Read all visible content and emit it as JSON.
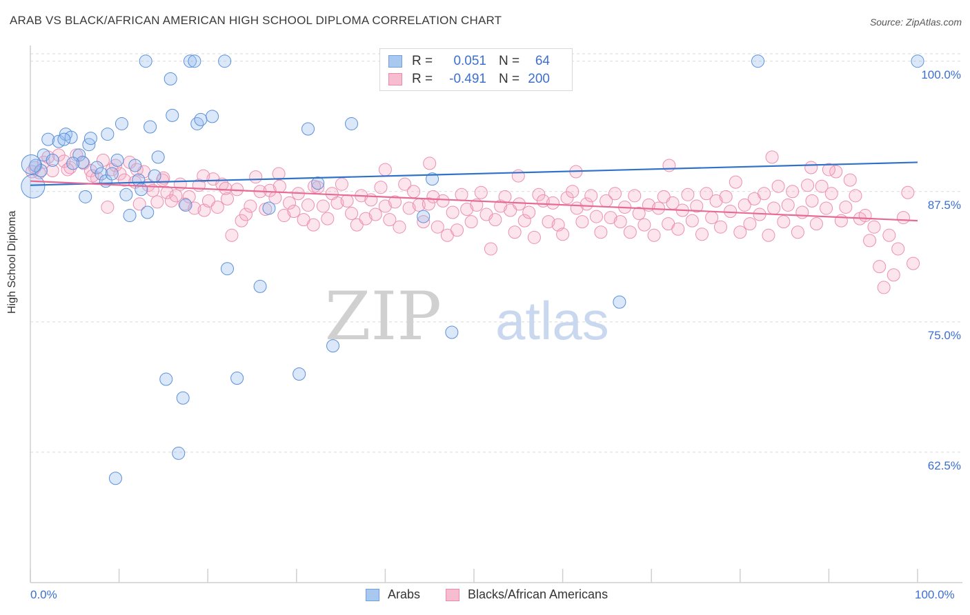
{
  "title": "ARAB VS BLACK/AFRICAN AMERICAN HIGH SCHOOL DIPLOMA CORRELATION CHART",
  "source": "Source: ZipAtlas.com",
  "watermark": {
    "zip": "ZIP",
    "atlas": "atlas"
  },
  "legend": {
    "rows": [
      {
        "r_label": "R =",
        "r_value": "0.051",
        "n_label": "N =",
        "n_value": "64",
        "color": "#a8c8f0",
        "border": "#6f9fe0"
      },
      {
        "r_label": "R =",
        "r_value": "-0.491",
        "n_label": "N =",
        "n_value": "200",
        "color": "#f8bcd0",
        "border": "#e88aa8"
      }
    ]
  },
  "bottom_legend": [
    {
      "label": "Arabs",
      "color": "#a8c8f0",
      "border": "#6f9fe0"
    },
    {
      "label": "Blacks/African Americans",
      "color": "#f8bcd0",
      "border": "#e88aa8"
    }
  ],
  "colors": {
    "arab_fill": "rgba(150,190,240,0.35)",
    "arab_stroke": "#5b8fd8",
    "black_fill": "rgba(245,170,195,0.3)",
    "black_stroke": "#ec8fb0",
    "arab_line": "#2f72c8",
    "black_line": "#e66a95",
    "grid": "#d9d9d9",
    "tick_label": "#3b6fd0"
  },
  "chart_data": {
    "type": "scatter",
    "title": "ARAB VS BLACK/AFRICAN AMERICAN HIGH SCHOOL DIPLOMA CORRELATION CHART",
    "xlabel": "",
    "ylabel": "High School Diploma",
    "xlim": [
      0,
      100
    ],
    "ylim": [
      50,
      101.5
    ],
    "x_tick_labels": [
      "0.0%",
      "100.0%"
    ],
    "y_ticks": [
      62.5,
      75.0,
      87.5,
      100.0
    ],
    "y_tick_labels": [
      "62.5%",
      "75.0%",
      "87.5%",
      "100.0%"
    ],
    "grid": true,
    "series": [
      {
        "name": "Arabs",
        "trend": {
          "x": [
            0,
            100
          ],
          "y": [
            88.1,
            90.3
          ]
        },
        "points": [
          [
            0.3,
            88.0
          ],
          [
            0.6,
            90.0
          ],
          [
            1.2,
            89.5
          ],
          [
            1.5,
            91.0
          ],
          [
            2.0,
            92.5
          ],
          [
            2.5,
            90.5
          ],
          [
            3.2,
            92.3
          ],
          [
            4.0,
            93.0
          ],
          [
            4.6,
            92.7
          ],
          [
            5.5,
            91.0
          ],
          [
            5.9,
            90.3
          ],
          [
            6.2,
            87.0
          ],
          [
            6.6,
            92.0
          ],
          [
            6.8,
            92.6
          ],
          [
            7.5,
            89.8
          ],
          [
            8.0,
            89.2
          ],
          [
            8.5,
            88.5
          ],
          [
            8.7,
            93.0
          ],
          [
            9.2,
            89.2
          ],
          [
            9.6,
            60.0
          ],
          [
            9.8,
            90.5
          ],
          [
            10.3,
            94.0
          ],
          [
            10.8,
            87.2
          ],
          [
            11.2,
            85.2
          ],
          [
            11.8,
            90.0
          ],
          [
            12.2,
            88.6
          ],
          [
            12.5,
            87.7
          ],
          [
            13.0,
            100.0
          ],
          [
            13.2,
            85.5
          ],
          [
            13.5,
            93.7
          ],
          [
            14.4,
            90.8
          ],
          [
            15.3,
            69.5
          ],
          [
            15.8,
            98.3
          ],
          [
            16.0,
            94.8
          ],
          [
            16.7,
            62.4
          ],
          [
            17.2,
            67.7
          ],
          [
            17.5,
            86.2
          ],
          [
            18.0,
            100.0
          ],
          [
            18.5,
            100.0
          ],
          [
            18.8,
            94.0
          ],
          [
            19.2,
            94.4
          ],
          [
            20.5,
            94.7
          ],
          [
            21.9,
            100.0
          ],
          [
            22.2,
            80.1
          ],
          [
            23.3,
            69.6
          ],
          [
            25.9,
            78.4
          ],
          [
            26.9,
            85.9
          ],
          [
            30.3,
            70.0
          ],
          [
            31.3,
            93.5
          ],
          [
            34.1,
            72.7
          ],
          [
            32.4,
            88.3
          ],
          [
            36.2,
            94.0
          ],
          [
            44.3,
            85.1
          ],
          [
            45.3,
            88.7
          ],
          [
            47.5,
            74.0
          ],
          [
            48.2,
            100.0
          ],
          [
            60.2,
            100.0
          ],
          [
            66.4,
            76.9
          ],
          [
            82.0,
            100.0
          ],
          [
            100.0,
            100.0
          ],
          [
            0.1,
            90.1
          ],
          [
            4.8,
            90.2
          ],
          [
            3.8,
            92.5
          ],
          [
            14.0,
            89.0
          ]
        ]
      },
      {
        "name": "Blacks/African Americans",
        "trend": {
          "x": [
            0,
            100
          ],
          "y": [
            88.5,
            84.7
          ]
        },
        "points": [
          [
            0.5,
            89.8
          ],
          [
            1.5,
            90.3
          ],
          [
            2.5,
            89.5
          ],
          [
            3.2,
            91.0
          ],
          [
            3.8,
            90.4
          ],
          [
            4.5,
            89.8
          ],
          [
            5.2,
            91.0
          ],
          [
            6.0,
            90.2
          ],
          [
            6.8,
            89.5
          ],
          [
            7.5,
            88.8
          ],
          [
            8.2,
            90.5
          ],
          [
            8.7,
            86.0
          ],
          [
            9.2,
            89.6
          ],
          [
            9.6,
            90.0
          ],
          [
            10.1,
            89.2
          ],
          [
            10.6,
            88.6
          ],
          [
            11.2,
            90.3
          ],
          [
            11.8,
            88.4
          ],
          [
            12.3,
            86.3
          ],
          [
            12.8,
            89.4
          ],
          [
            13.3,
            88.1
          ],
          [
            13.8,
            87.6
          ],
          [
            14.3,
            86.5
          ],
          [
            14.9,
            88.6
          ],
          [
            15.4,
            87.4
          ],
          [
            15.9,
            86.6
          ],
          [
            16.4,
            87.1
          ],
          [
            16.9,
            88.2
          ],
          [
            17.4,
            86.3
          ],
          [
            17.9,
            87.0
          ],
          [
            18.5,
            85.9
          ],
          [
            19.0,
            88.1
          ],
          [
            19.6,
            85.7
          ],
          [
            20.1,
            86.6
          ],
          [
            20.6,
            88.7
          ],
          [
            21.1,
            86.0
          ],
          [
            21.6,
            88.2
          ],
          [
            22.2,
            86.8
          ],
          [
            22.7,
            83.3
          ],
          [
            23.3,
            87.7
          ],
          [
            23.8,
            84.7
          ],
          [
            24.3,
            85.3
          ],
          [
            24.8,
            86.1
          ],
          [
            25.4,
            88.9
          ],
          [
            25.9,
            87.5
          ],
          [
            26.5,
            85.8
          ],
          [
            27.0,
            87.6
          ],
          [
            27.6,
            86.9
          ],
          [
            28.1,
            88.0
          ],
          [
            28.6,
            85.2
          ],
          [
            29.2,
            86.4
          ],
          [
            29.7,
            85.6
          ],
          [
            30.2,
            87.3
          ],
          [
            30.8,
            84.8
          ],
          [
            31.3,
            86.2
          ],
          [
            31.9,
            84.3
          ],
          [
            32.4,
            87.9
          ],
          [
            33.0,
            86.1
          ],
          [
            33.5,
            84.9
          ],
          [
            34.0,
            87.3
          ],
          [
            34.6,
            86.4
          ],
          [
            35.1,
            88.2
          ],
          [
            35.7,
            86.6
          ],
          [
            36.2,
            85.4
          ],
          [
            36.8,
            84.3
          ],
          [
            37.3,
            87.1
          ],
          [
            37.8,
            84.9
          ],
          [
            38.4,
            86.7
          ],
          [
            38.9,
            85.3
          ],
          [
            39.5,
            87.9
          ],
          [
            40.0,
            86.1
          ],
          [
            40.5,
            84.8
          ],
          [
            41.1,
            86.5
          ],
          [
            41.6,
            84.1
          ],
          [
            42.2,
            88.2
          ],
          [
            42.7,
            85.9
          ],
          [
            43.2,
            87.5
          ],
          [
            43.8,
            86.2
          ],
          [
            44.3,
            84.6
          ],
          [
            44.9,
            86.3
          ],
          [
            45.4,
            87.0
          ],
          [
            45.9,
            84.1
          ],
          [
            46.5,
            86.6
          ],
          [
            47.0,
            83.3
          ],
          [
            47.6,
            85.5
          ],
          [
            48.1,
            83.8
          ],
          [
            48.6,
            87.2
          ],
          [
            49.2,
            85.8
          ],
          [
            49.7,
            84.6
          ],
          [
            50.3,
            86.2
          ],
          [
            50.8,
            87.4
          ],
          [
            51.4,
            85.3
          ],
          [
            51.9,
            82.0
          ],
          [
            52.4,
            84.8
          ],
          [
            53.0,
            86.1
          ],
          [
            53.5,
            87.0
          ],
          [
            54.1,
            85.7
          ],
          [
            54.6,
            83.6
          ],
          [
            55.1,
            86.3
          ],
          [
            55.7,
            84.7
          ],
          [
            56.2,
            85.5
          ],
          [
            56.8,
            83.1
          ],
          [
            57.3,
            87.2
          ],
          [
            57.8,
            86.6
          ],
          [
            58.4,
            84.6
          ],
          [
            58.9,
            86.4
          ],
          [
            59.5,
            84.3
          ],
          [
            60.0,
            83.4
          ],
          [
            60.5,
            86.9
          ],
          [
            61.1,
            87.5
          ],
          [
            61.6,
            85.9
          ],
          [
            62.2,
            84.6
          ],
          [
            62.7,
            86.3
          ],
          [
            63.2,
            87.1
          ],
          [
            63.8,
            85.1
          ],
          [
            64.3,
            83.6
          ],
          [
            64.9,
            86.6
          ],
          [
            65.4,
            85.0
          ],
          [
            65.9,
            87.3
          ],
          [
            66.5,
            84.6
          ],
          [
            67.0,
            86.0
          ],
          [
            67.6,
            83.6
          ],
          [
            68.1,
            87.1
          ],
          [
            68.6,
            85.4
          ],
          [
            69.2,
            84.3
          ],
          [
            69.7,
            86.2
          ],
          [
            70.3,
            83.3
          ],
          [
            70.8,
            85.9
          ],
          [
            71.4,
            87.0
          ],
          [
            71.9,
            84.4
          ],
          [
            72.4,
            86.4
          ],
          [
            73.0,
            83.9
          ],
          [
            73.5,
            85.7
          ],
          [
            74.1,
            87.2
          ],
          [
            74.6,
            84.7
          ],
          [
            75.1,
            86.1
          ],
          [
            75.7,
            83.4
          ],
          [
            76.2,
            87.3
          ],
          [
            76.8,
            85.0
          ],
          [
            77.3,
            86.6
          ],
          [
            77.8,
            84.1
          ],
          [
            78.4,
            87.0
          ],
          [
            78.9,
            85.6
          ],
          [
            79.5,
            88.4
          ],
          [
            80.0,
            83.6
          ],
          [
            80.5,
            86.2
          ],
          [
            81.1,
            84.4
          ],
          [
            81.6,
            86.8
          ],
          [
            82.2,
            85.3
          ],
          [
            82.7,
            87.3
          ],
          [
            83.2,
            83.3
          ],
          [
            83.8,
            85.9
          ],
          [
            84.3,
            88.0
          ],
          [
            84.9,
            84.6
          ],
          [
            85.4,
            86.2
          ],
          [
            85.9,
            87.5
          ],
          [
            86.5,
            83.6
          ],
          [
            87.0,
            85.5
          ],
          [
            87.6,
            88.1
          ],
          [
            88.1,
            86.6
          ],
          [
            88.6,
            84.4
          ],
          [
            89.2,
            88.0
          ],
          [
            89.7,
            85.9
          ],
          [
            90.3,
            87.3
          ],
          [
            90.8,
            89.4
          ],
          [
            91.4,
            84.7
          ],
          [
            91.9,
            86.0
          ],
          [
            92.4,
            88.6
          ],
          [
            93.0,
            87.1
          ],
          [
            93.5,
            84.9
          ],
          [
            94.1,
            85.2
          ],
          [
            94.6,
            82.8
          ],
          [
            95.1,
            84.1
          ],
          [
            95.7,
            80.3
          ],
          [
            96.2,
            78.3
          ],
          [
            96.8,
            83.3
          ],
          [
            97.3,
            79.5
          ],
          [
            97.8,
            82.0
          ],
          [
            98.4,
            85.0
          ],
          [
            98.9,
            87.4
          ],
          [
            99.5,
            80.6
          ],
          [
            90.0,
            89.6
          ],
          [
            88.0,
            89.8
          ],
          [
            83.6,
            90.8
          ],
          [
            72.0,
            90.0
          ],
          [
            61.5,
            89.4
          ],
          [
            55.0,
            89.0
          ],
          [
            45.0,
            90.2
          ],
          [
            40.0,
            89.6
          ],
          [
            32.0,
            88.0
          ],
          [
            28.0,
            89.2
          ],
          [
            22.0,
            87.8
          ],
          [
            19.5,
            89.0
          ],
          [
            15.0,
            88.8
          ],
          [
            12.0,
            89.6
          ],
          [
            7.0,
            89.0
          ],
          [
            4.2,
            89.6
          ],
          [
            2.0,
            90.8
          ],
          [
            1.0,
            89.3
          ],
          [
            0.2,
            89.4
          ]
        ]
      }
    ]
  }
}
